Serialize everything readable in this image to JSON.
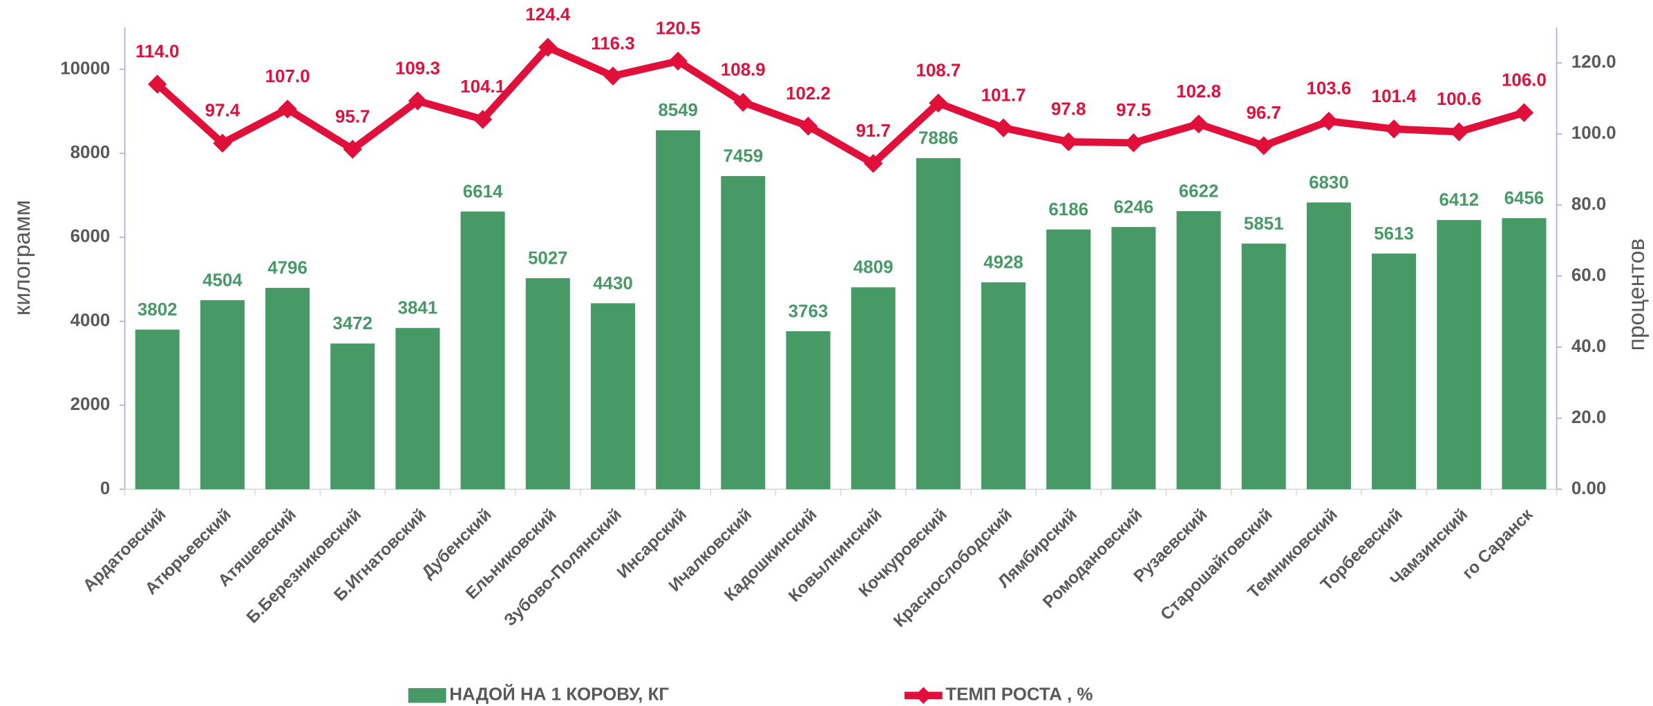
{
  "chart_data": {
    "type": "bar_line",
    "categories": [
      "Ардатовский",
      "Атюрьевский",
      "Атяшевский",
      "Б.Березниковский",
      "Б.Игнатовский",
      "Дубенский",
      "Ельниковский",
      "Зубово-Полянский",
      "Инсарский",
      "Ичалковский",
      "Кадошкинский",
      "Ковылкинский",
      "Кочкуровский",
      "Краснослободский",
      "Лямбирский",
      "Ромодановский",
      "Рузаевский",
      "Старошайговский",
      "Темниковский",
      "Торбеевский",
      "Чамзинский",
      "го Саранск"
    ],
    "series": [
      {
        "name": "НАДОЙ НА 1 КОРОВУ, КГ",
        "color": "#479966",
        "type": "bar",
        "axis": "y",
        "values": [
          3802,
          4504,
          4796,
          3472,
          3841,
          6614,
          5027,
          4430,
          8549,
          7459,
          3763,
          4809,
          7886,
          4928,
          6186,
          6246,
          6622,
          5851,
          6830,
          5613,
          6412,
          6456
        ]
      },
      {
        "name": "ТЕМП РОСТА , %",
        "color": "#e0103a",
        "type": "line",
        "axis": "y2",
        "values": [
          114.0,
          97.4,
          107.0,
          95.7,
          109.3,
          104.1,
          124.4,
          116.3,
          120.5,
          108.9,
          102.2,
          91.7,
          108.7,
          101.7,
          97.8,
          97.5,
          102.8,
          96.7,
          103.6,
          101.4,
          100.6,
          106.0
        ],
        "value_labels": [
          "114.0",
          "97.4",
          "107.0",
          "95.7",
          "109.3",
          "104.1",
          "124.4",
          "116.3",
          "120.5",
          "108.9",
          "102.2",
          "91.7",
          "108.7",
          "101.7",
          "97.8",
          "97.5",
          "102.8",
          "96.7",
          "103.6",
          "101.4",
          "100.6",
          "106.0"
        ]
      }
    ],
    "y_label": "килограмм",
    "y2_label": "процентов",
    "ylim": [
      0,
      11000
    ],
    "yticks": [
      0,
      2000,
      4000,
      6000,
      8000,
      10000
    ],
    "y2lim": [
      0,
      130
    ],
    "y2ticks": [
      {
        "value": 0,
        "label": "0.00"
      },
      {
        "value": 20,
        "label": "20.0"
      },
      {
        "value": 40,
        "label": "40.0"
      },
      {
        "value": 60,
        "label": "60.0"
      },
      {
        "value": 80,
        "label": "80.0"
      },
      {
        "value": 100,
        "label": "100.0"
      },
      {
        "value": 120,
        "label": "120.0"
      }
    ],
    "legend": "bottom"
  }
}
